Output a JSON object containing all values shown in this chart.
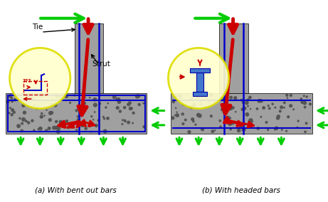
{
  "title_a": "(a) With bent out bars",
  "title_b": "(b) With headed bars",
  "gray": "#a0a0a0",
  "green": "#00cc00",
  "red": "#cc0000",
  "blue": "#0000cc",
  "yellow_face": "#ffffcc",
  "yellow_edge": "#dddd00",
  "white_bg": "#ffffff",
  "black": "#000000",
  "dark_gray": "#555555",
  "steel_blue": "#4477cc",
  "steel_dark": "#0000aa"
}
